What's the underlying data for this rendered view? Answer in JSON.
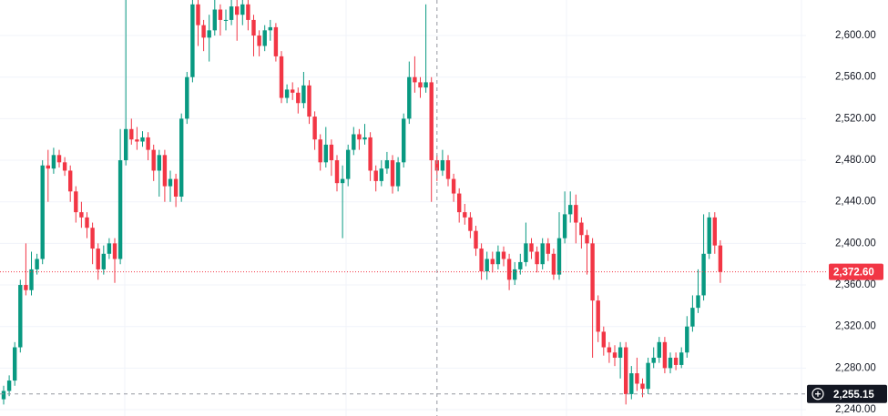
{
  "chart_data": {
    "type": "candlestick",
    "ylim": [
      2233.9,
      2634.2
    ],
    "yticks": [
      {
        "value": 2240,
        "label": "2,240.00"
      },
      {
        "value": 2280,
        "label": "2,280.00"
      },
      {
        "value": 2320,
        "label": "2,320.00"
      },
      {
        "value": 2360,
        "label": "2,360.00"
      },
      {
        "value": 2400,
        "label": "2,400.00"
      },
      {
        "value": 2440,
        "label": "2,440.00"
      },
      {
        "value": 2480,
        "label": "2,480.00"
      },
      {
        "value": 2520,
        "label": "2,520.00"
      },
      {
        "value": 2560,
        "label": "2,560.00"
      },
      {
        "value": 2600,
        "label": "2,600.00"
      }
    ],
    "grid": true,
    "up_color": "#089981",
    "down_color": "#f23645",
    "last_price": {
      "value": 2372.6,
      "label": "2,372.60"
    },
    "crosshair": {
      "index": 78,
      "value": 2255.15,
      "label": "2,255.15"
    },
    "open": [
      2250,
      2258,
      2268,
      2300,
      2360,
      2355,
      2375,
      2385,
      2475,
      2472,
      2485,
      2478,
      2470,
      2450,
      2430,
      2425,
      2415,
      2395,
      2375,
      2390,
      2400,
      2385,
      2480,
      2510,
      2500,
      2498,
      2502,
      2490,
      2470,
      2485,
      2455,
      2462,
      2445,
      2520,
      2560,
      2630,
      2610,
      2598,
      2605,
      2625,
      2615,
      2615,
      2628,
      2620,
      2630,
      2615,
      2600,
      2590,
      2605,
      2608,
      2580,
      2540,
      2548,
      2545,
      2535,
      2552,
      2522,
      2500,
      2478,
      2495,
      2480,
      2458,
      2462,
      2490,
      2505,
      2500,
      2502,
      2470,
      2460,
      2472,
      2480,
      2455,
      2478,
      2520,
      2560,
      2555,
      2550,
      2555,
      2480,
      2470,
      2480,
      2462,
      2448,
      2430,
      2425,
      2412,
      2395,
      2373,
      2385,
      2380,
      2392,
      2385,
      2365,
      2375,
      2382,
      2400,
      2392,
      2380,
      2400,
      2390,
      2370,
      2405,
      2428,
      2437,
      2420,
      2408,
      2400,
      2345,
      2315,
      2300,
      2295,
      2290,
      2300,
      2255,
      2275,
      2265,
      2260,
      2285,
      2290,
      2305,
      2280,
      2290,
      2283,
      2295,
      2320,
      2338,
      2350,
      2390,
      2425,
      2398
    ],
    "high": [
      2263,
      2273,
      2305,
      2365,
      2400,
      2392,
      2390,
      2480,
      2490,
      2492,
      2490,
      2483,
      2475,
      2455,
      2440,
      2430,
      2420,
      2400,
      2398,
      2405,
      2405,
      2510,
      2650,
      2520,
      2512,
      2508,
      2507,
      2495,
      2490,
      2490,
      2470,
      2467,
      2525,
      2565,
      2640,
      2635,
      2615,
      2620,
      2650,
      2630,
      2625,
      2645,
      2640,
      2645,
      2640,
      2620,
      2605,
      2610,
      2615,
      2612,
      2585,
      2553,
      2555,
      2550,
      2565,
      2557,
      2527,
      2505,
      2512,
      2500,
      2485,
      2475,
      2495,
      2512,
      2510,
      2515,
      2507,
      2475,
      2480,
      2488,
      2485,
      2483,
      2525,
      2575,
      2580,
      2560,
      2630,
      2560,
      2485,
      2490,
      2485,
      2467,
      2453,
      2438,
      2430,
      2417,
      2400,
      2392,
      2392,
      2398,
      2397,
      2390,
      2382,
      2390,
      2420,
      2405,
      2397,
      2405,
      2405,
      2395,
      2430,
      2450,
      2450,
      2447,
      2425,
      2413,
      2405,
      2350,
      2320,
      2305,
      2302,
      2305,
      2305,
      2282,
      2290,
      2270,
      2290,
      2300,
      2310,
      2310,
      2295,
      2295,
      2300,
      2330,
      2350,
      2375,
      2428,
      2430,
      2430,
      2403
    ],
    "low": [
      2245,
      2253,
      2263,
      2295,
      2350,
      2350,
      2370,
      2380,
      2440,
      2467,
      2473,
      2465,
      2440,
      2420,
      2415,
      2405,
      2380,
      2365,
      2370,
      2385,
      2362,
      2380,
      2475,
      2495,
      2490,
      2493,
      2480,
      2460,
      2445,
      2440,
      2440,
      2435,
      2440,
      2515,
      2555,
      2590,
      2585,
      2575,
      2600,
      2600,
      2605,
      2610,
      2595,
      2610,
      2605,
      2580,
      2580,
      2585,
      2595,
      2575,
      2535,
      2535,
      2538,
      2525,
      2530,
      2515,
      2490,
      2470,
      2473,
      2465,
      2450,
      2405,
      2455,
      2485,
      2490,
      2495,
      2460,
      2450,
      2455,
      2467,
      2448,
      2450,
      2473,
      2515,
      2545,
      2540,
      2545,
      2440,
      2460,
      2465,
      2455,
      2440,
      2420,
      2418,
      2405,
      2388,
      2365,
      2365,
      2372,
      2375,
      2378,
      2355,
      2360,
      2370,
      2378,
      2385,
      2372,
      2375,
      2383,
      2365,
      2365,
      2400,
      2420,
      2400,
      2395,
      2370,
      2290,
      2305,
      2292,
      2285,
      2282,
      2270,
      2245,
      2250,
      2258,
      2252,
      2255,
      2280,
      2285,
      2275,
      2275,
      2278,
      2280,
      2290,
      2315,
      2333,
      2345,
      2385,
      2390,
      2362
    ],
    "close": [
      2258,
      2268,
      2300,
      2360,
      2355,
      2375,
      2385,
      2475,
      2472,
      2485,
      2478,
      2470,
      2450,
      2430,
      2425,
      2415,
      2395,
      2375,
      2390,
      2400,
      2385,
      2480,
      2510,
      2500,
      2498,
      2502,
      2490,
      2470,
      2485,
      2455,
      2462,
      2445,
      2520,
      2560,
      2630,
      2610,
      2598,
      2605,
      2625,
      2615,
      2615,
      2628,
      2620,
      2630,
      2615,
      2600,
      2590,
      2605,
      2608,
      2580,
      2540,
      2548,
      2545,
      2535,
      2552,
      2522,
      2500,
      2478,
      2495,
      2480,
      2458,
      2462,
      2490,
      2505,
      2500,
      2502,
      2470,
      2460,
      2472,
      2480,
      2455,
      2478,
      2520,
      2560,
      2555,
      2550,
      2555,
      2480,
      2470,
      2480,
      2462,
      2448,
      2430,
      2425,
      2412,
      2395,
      2373,
      2385,
      2380,
      2392,
      2385,
      2365,
      2375,
      2382,
      2400,
      2392,
      2380,
      2400,
      2390,
      2370,
      2405,
      2428,
      2437,
      2420,
      2408,
      2400,
      2345,
      2315,
      2300,
      2295,
      2290,
      2300,
      2255,
      2275,
      2265,
      2260,
      2285,
      2290,
      2305,
      2280,
      2290,
      2283,
      2295,
      2320,
      2338,
      2350,
      2390,
      2425,
      2398,
      2372.6
    ]
  }
}
